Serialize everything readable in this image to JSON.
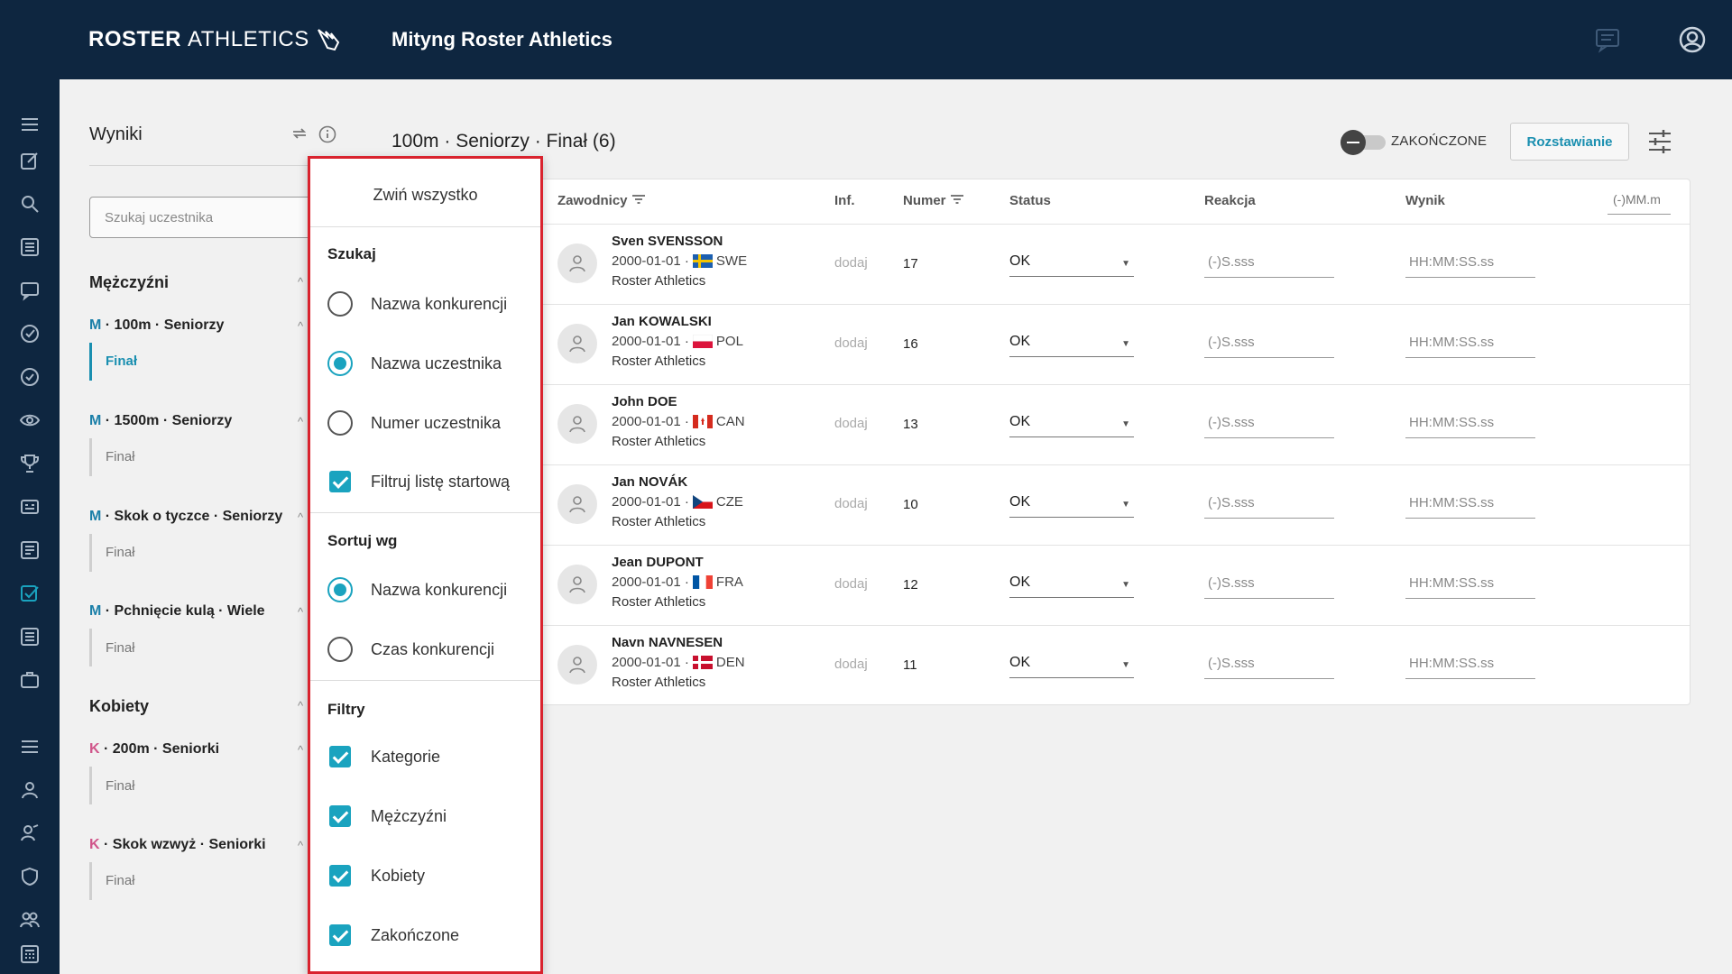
{
  "header": {
    "brand_bold": "ROSTER",
    "brand_light": "ATHLETICS",
    "meet_title": "Mityng Roster Athletics"
  },
  "sidebar_panel": {
    "title": "Wyniki",
    "search_placeholder": "Szukaj uczestnika",
    "groups": [
      {
        "label": "Mężczyźni",
        "events": [
          {
            "prefix": "M",
            "name": " · 100m · Seniorzy",
            "round": "Finał",
            "active": true
          },
          {
            "prefix": "M",
            "name": " · 1500m · Seniorzy",
            "round": "Finał",
            "active": false
          },
          {
            "prefix": "M",
            "name": " · Skok o tyczce · Seniorzy",
            "round": "Finał",
            "active": false
          },
          {
            "prefix": "M",
            "name": " · Pchnięcie kulą · Wiele",
            "round": "Finał",
            "active": false
          }
        ]
      },
      {
        "label": "Kobiety",
        "events": [
          {
            "prefix": "K",
            "name": " · 200m · Seniorki",
            "round": "Finał",
            "active": false
          },
          {
            "prefix": "K",
            "name": " · Skok wzwyż · Seniorki",
            "round": "Finał",
            "active": false
          }
        ]
      }
    ]
  },
  "main": {
    "event_title": "100m · Seniorzy · Finał (6)",
    "toggle_label": "ZAKOŃCZONE",
    "toggle_on": false,
    "seeding_button": "Rozstawianie",
    "columns": {
      "athletes": "Zawodnicy",
      "inf": "Inf.",
      "number": "Numer",
      "status": "Status",
      "reaction": "Reakcja",
      "result": "Wynik"
    },
    "unit_field": "(-)MM.m",
    "rows": [
      {
        "name": "Sven SVENSSON",
        "dob": "2000-01-01 · ",
        "country": "SWE",
        "club": "Roster Athletics",
        "inf": "dodaj",
        "number": "17",
        "status": "OK",
        "reaction": "(-)S.sss",
        "result": "HH:MM:SS.ss"
      },
      {
        "name": "Jan KOWALSKI",
        "dob": "2000-01-01 · ",
        "country": "POL",
        "club": "Roster Athletics",
        "inf": "dodaj",
        "number": "16",
        "status": "OK",
        "reaction": "(-)S.sss",
        "result": "HH:MM:SS.ss"
      },
      {
        "name": "John DOE",
        "dob": "2000-01-01 · ",
        "country": "CAN",
        "club": "Roster Athletics",
        "inf": "dodaj",
        "number": "13",
        "status": "OK",
        "reaction": "(-)S.sss",
        "result": "HH:MM:SS.ss"
      },
      {
        "name": "Jan NOVÁK",
        "dob": "2000-01-01 · ",
        "country": "CZE",
        "club": "Roster Athletics",
        "inf": "dodaj",
        "number": "10",
        "status": "OK",
        "reaction": "(-)S.sss",
        "result": "HH:MM:SS.ss"
      },
      {
        "name": "Jean DUPONT",
        "dob": "2000-01-01 · ",
        "country": "FRA",
        "club": "Roster Athletics",
        "inf": "dodaj",
        "number": "12",
        "status": "OK",
        "reaction": "(-)S.sss",
        "result": "HH:MM:SS.ss"
      },
      {
        "name": "Navn NAVNESEN",
        "dob": "2000-01-01 · ",
        "country": "DEN",
        "club": "Roster Athletics",
        "inf": "dodaj",
        "number": "11",
        "status": "OK",
        "reaction": "(-)S.sss",
        "result": "HH:MM:SS.ss"
      }
    ]
  },
  "popup": {
    "collapse_all": "Zwiń wszystko",
    "search_section": "Szukaj",
    "search_options": [
      {
        "label": "Nazwa konkurencji",
        "selected": false
      },
      {
        "label": "Nazwa uczestnika",
        "selected": true
      },
      {
        "label": "Numer uczestnika",
        "selected": false
      }
    ],
    "filter_start_list": {
      "label": "Filtruj listę startową",
      "checked": true
    },
    "sort_section": "Sortuj wg",
    "sort_options": [
      {
        "label": "Nazwa konkurencji",
        "selected": true
      },
      {
        "label": "Czas konkurencji",
        "selected": false
      }
    ],
    "filters_section": "Filtry",
    "filter_options": [
      {
        "label": "Kategorie",
        "checked": true
      },
      {
        "label": "Mężczyźni",
        "checked": true
      },
      {
        "label": "Kobiety",
        "checked": true
      },
      {
        "label": "Zakończone",
        "checked": true
      }
    ]
  },
  "colors": {
    "navy": "#0e2640",
    "accent": "#1aa3bf",
    "highlight_border": "#d9232e",
    "women_prefix": "#d0558a"
  },
  "icons": [
    "menu-icon",
    "edit-icon",
    "search-icon",
    "list-icon",
    "chat-icon",
    "check-circle-icon",
    "eye-icon",
    "trophy-icon",
    "scoreboard-icon",
    "document-icon",
    "checkbox-icon",
    "briefcase-icon",
    "person-icon",
    "shield-icon",
    "group-icon",
    "calculator-icon",
    "user-circle-icon",
    "message-icon",
    "tune-icon",
    "swap-icon",
    "info-icon"
  ]
}
